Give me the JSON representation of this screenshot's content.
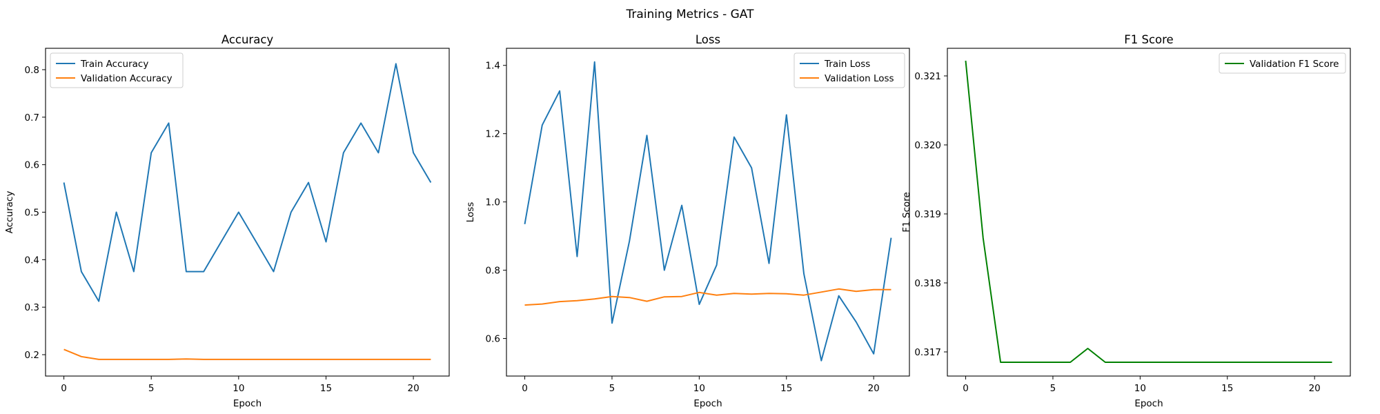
{
  "suptitle": "Training Metrics - GAT",
  "chart_data": [
    {
      "type": "line",
      "title": "Accuracy",
      "xlabel": "Epoch",
      "ylabel": "Accuracy",
      "xlim": [
        -1.05,
        22.05
      ],
      "ylim": [
        0.155,
        0.845
      ],
      "xticks": [
        0,
        5,
        10,
        15,
        20
      ],
      "yticks": [
        0.2,
        0.3,
        0.4,
        0.5,
        0.6,
        0.7,
        0.8
      ],
      "ytick_labels": [
        "0.2",
        "0.3",
        "0.4",
        "0.5",
        "0.6",
        "0.7",
        "0.8"
      ],
      "grid": false,
      "legend_position": "upper-left",
      "x": [
        0,
        1,
        2,
        3,
        4,
        5,
        6,
        7,
        8,
        9,
        10,
        11,
        12,
        13,
        14,
        15,
        16,
        17,
        18,
        19,
        20,
        21
      ],
      "series": [
        {
          "name": "Train Accuracy",
          "color": "#1f77b4",
          "values": [
            0.5625,
            0.375,
            0.3125,
            0.5,
            0.375,
            0.625,
            0.6875,
            0.375,
            0.375,
            0.4375,
            0.5,
            0.4375,
            0.375,
            0.5,
            0.5625,
            0.4375,
            0.625,
            0.6875,
            0.625,
            0.8125,
            0.625,
            0.5625
          ]
        },
        {
          "name": "Validation Accuracy",
          "color": "#ff7f0e",
          "values": [
            0.211,
            0.196,
            0.19,
            0.19,
            0.19,
            0.19,
            0.19,
            0.191,
            0.19,
            0.19,
            0.19,
            0.19,
            0.19,
            0.19,
            0.19,
            0.19,
            0.19,
            0.19,
            0.19,
            0.19,
            0.19,
            0.19
          ]
        }
      ]
    },
    {
      "type": "line",
      "title": "Loss",
      "xlabel": "Epoch",
      "ylabel": "Loss",
      "xlim": [
        -1.05,
        22.05
      ],
      "ylim": [
        0.49,
        1.45
      ],
      "xticks": [
        0,
        5,
        10,
        15,
        20
      ],
      "yticks": [
        0.6,
        0.8,
        1.0,
        1.2,
        1.4
      ],
      "ytick_labels": [
        "0.6",
        "0.8",
        "1.0",
        "1.2",
        "1.4"
      ],
      "grid": false,
      "legend_position": "upper-right",
      "x": [
        0,
        1,
        2,
        3,
        4,
        5,
        6,
        7,
        8,
        9,
        10,
        11,
        12,
        13,
        14,
        15,
        16,
        17,
        18,
        19,
        20,
        21
      ],
      "series": [
        {
          "name": "Train Loss",
          "color": "#1f77b4",
          "values": [
            0.935,
            1.225,
            1.325,
            0.84,
            1.41,
            0.645,
            0.885,
            1.195,
            0.8,
            0.99,
            0.7,
            0.815,
            1.19,
            1.1,
            0.82,
            1.255,
            0.79,
            0.535,
            0.725,
            0.648,
            0.555,
            0.895
          ]
        },
        {
          "name": "Validation Loss",
          "color": "#ff7f0e",
          "values": [
            0.698,
            0.701,
            0.708,
            0.711,
            0.716,
            0.723,
            0.72,
            0.709,
            0.722,
            0.723,
            0.735,
            0.727,
            0.732,
            0.73,
            0.732,
            0.731,
            0.727,
            0.736,
            0.745,
            0.738,
            0.743,
            0.743
          ]
        }
      ]
    },
    {
      "type": "line",
      "title": "F1 Score",
      "xlabel": "Epoch",
      "ylabel": "F1 Score",
      "xlim": [
        -1.05,
        22.05
      ],
      "ylim": [
        0.31665,
        0.3214
      ],
      "xticks": [
        0,
        5,
        10,
        15,
        20
      ],
      "yticks": [
        0.317,
        0.318,
        0.319,
        0.32,
        0.321
      ],
      "ytick_labels": [
        "0.317",
        "0.318",
        "0.319",
        "0.320",
        "0.321"
      ],
      "grid": false,
      "legend_position": "upper-right",
      "x": [
        0,
        1,
        2,
        3,
        4,
        5,
        6,
        7,
        8,
        9,
        10,
        11,
        12,
        13,
        14,
        15,
        16,
        17,
        18,
        19,
        20,
        21
      ],
      "series": [
        {
          "name": "Validation F1 Score",
          "color": "#008000",
          "values": [
            0.32122,
            0.31865,
            0.31685,
            0.31685,
            0.31685,
            0.31685,
            0.31685,
            0.31705,
            0.31685,
            0.31685,
            0.31685,
            0.31685,
            0.31685,
            0.31685,
            0.31685,
            0.31685,
            0.31685,
            0.31685,
            0.31685,
            0.31685,
            0.31685,
            0.31685
          ]
        }
      ]
    }
  ]
}
